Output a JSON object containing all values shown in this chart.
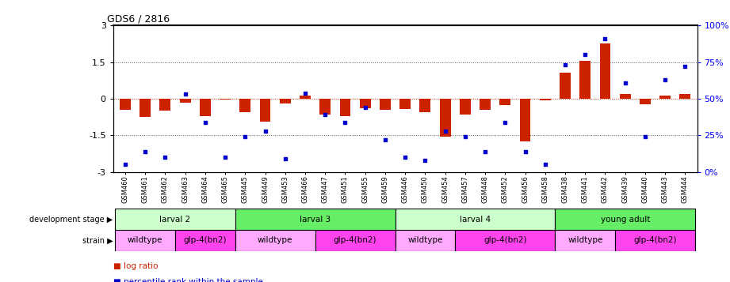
{
  "title": "GDS6 / 2816",
  "samples": [
    "GSM460",
    "GSM461",
    "GSM462",
    "GSM463",
    "GSM464",
    "GSM465",
    "GSM445",
    "GSM449",
    "GSM453",
    "GSM466",
    "GSM447",
    "GSM451",
    "GSM455",
    "GSM459",
    "GSM446",
    "GSM450",
    "GSM454",
    "GSM457",
    "GSM448",
    "GSM452",
    "GSM456",
    "GSM458",
    "GSM438",
    "GSM441",
    "GSM442",
    "GSM439",
    "GSM440",
    "GSM443",
    "GSM444"
  ],
  "log_ratio": [
    -0.45,
    -0.75,
    -0.5,
    -0.15,
    -0.7,
    -0.05,
    -0.55,
    -0.95,
    -0.2,
    0.12,
    -0.65,
    -0.7,
    -0.4,
    -0.45,
    -0.42,
    -0.55,
    -1.55,
    -0.65,
    -0.45,
    -0.25,
    -1.75,
    -0.08,
    1.05,
    1.55,
    2.25,
    0.18,
    -0.22,
    0.12,
    0.18
  ],
  "percentile": [
    5,
    14,
    10,
    53,
    34,
    10,
    24,
    28,
    9,
    54,
    39,
    34,
    44,
    22,
    10,
    8,
    28,
    24,
    14,
    34,
    14,
    5,
    73,
    80,
    91,
    61,
    24,
    63,
    72
  ],
  "dev_stages": [
    {
      "label": "larval 2",
      "start": 0,
      "end": 6,
      "color": "#ccffcc"
    },
    {
      "label": "larval 3",
      "start": 6,
      "end": 14,
      "color": "#66ee66"
    },
    {
      "label": "larval 4",
      "start": 14,
      "end": 22,
      "color": "#ccffcc"
    },
    {
      "label": "young adult",
      "start": 22,
      "end": 29,
      "color": "#66ee66"
    }
  ],
  "strains": [
    {
      "label": "wildtype",
      "start": 0,
      "end": 3,
      "color": "#ffaaff"
    },
    {
      "label": "glp-4(bn2)",
      "start": 3,
      "end": 6,
      "color": "#ff44ee"
    },
    {
      "label": "wildtype",
      "start": 6,
      "end": 10,
      "color": "#ffaaff"
    },
    {
      "label": "glp-4(bn2)",
      "start": 10,
      "end": 14,
      "color": "#ff44ee"
    },
    {
      "label": "wildtype",
      "start": 14,
      "end": 17,
      "color": "#ffaaff"
    },
    {
      "label": "glp-4(bn2)",
      "start": 17,
      "end": 22,
      "color": "#ff44ee"
    },
    {
      "label": "wildtype",
      "start": 22,
      "end": 25,
      "color": "#ffaaff"
    },
    {
      "label": "glp-4(bn2)",
      "start": 25,
      "end": 29,
      "color": "#ff44ee"
    }
  ],
  "ylim": [
    -3,
    3
  ],
  "yticks_left": [
    -3,
    -1.5,
    0,
    1.5,
    3
  ],
  "ytick_labels_left": [
    "-3",
    "-1.5",
    "0",
    "1.5",
    "3"
  ],
  "right_ytick_pcts": [
    0,
    25,
    50,
    75,
    100
  ],
  "right_ytick_labels": [
    "0%",
    "25%",
    "50%",
    "75%",
    "100%"
  ],
  "bar_color": "#cc2200",
  "dot_color": "#0000cc",
  "zero_line_color": "#cc2200",
  "dotted_color": "#555555",
  "legend_red_label": "log ratio",
  "legend_blue_label": "percentile rank within the sample"
}
